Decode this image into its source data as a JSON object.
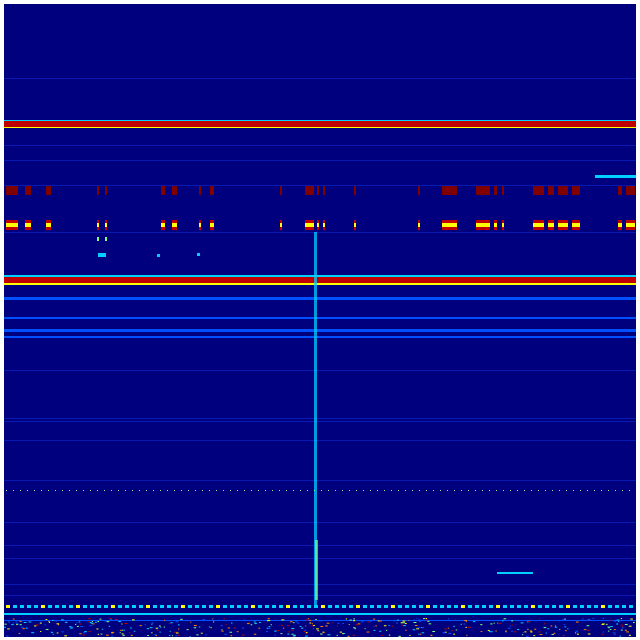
{
  "spectrogram": {
    "colormap": "jet",
    "colors": {
      "background": "#00007f",
      "faint_line": "#0a1fbf",
      "blue": "#0050ff",
      "cyan": "#00d0ff",
      "green": "#7fff7f",
      "yellow": "#ffff00",
      "orange": "#ff8000",
      "red": "#c00000",
      "dark_red": "#800000"
    }
  }
}
